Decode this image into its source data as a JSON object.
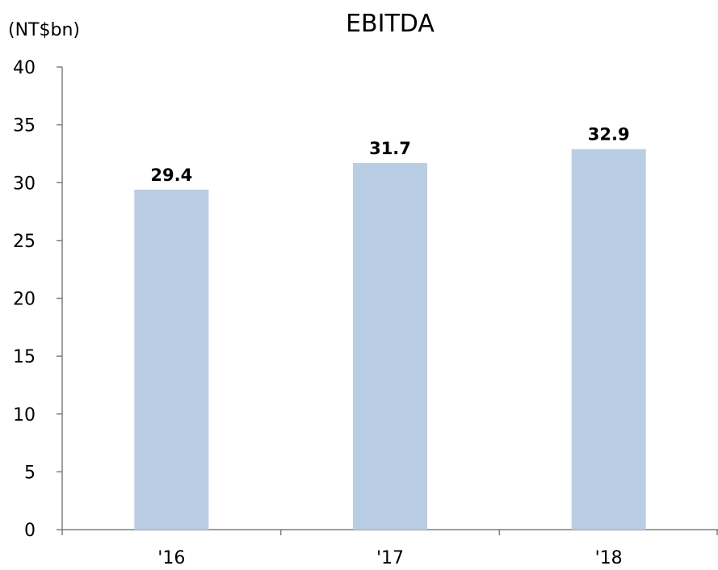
{
  "chart_data": {
    "type": "bar",
    "title": "EBITDA",
    "unit_label": "(NT$bn)",
    "categories": [
      "'16",
      "'17",
      "'18"
    ],
    "values": [
      29.4,
      31.7,
      32.9
    ],
    "data_labels": [
      "29.4",
      "31.7",
      "32.9"
    ],
    "ylim": [
      0,
      40
    ],
    "yticks": [
      0,
      5,
      10,
      15,
      20,
      25,
      30,
      35,
      40
    ],
    "xlabel": "",
    "ylabel": "",
    "grid": false,
    "legend": "none",
    "bar_color": "#b9cde4",
    "axis_color": "#7f7f7f"
  }
}
